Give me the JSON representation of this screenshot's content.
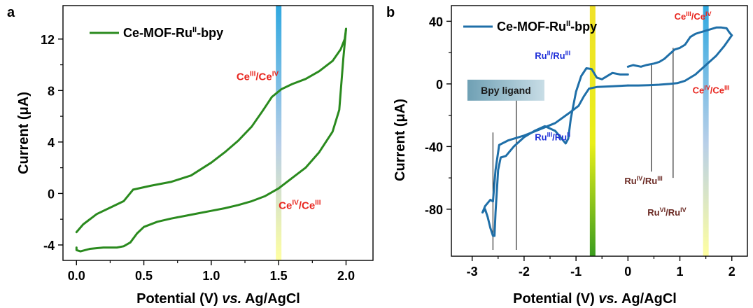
{
  "chart_data": [
    {
      "type": "line",
      "panel_label": "a",
      "legend": "Ce-MOF-Ru",
      "legend_sup": "II",
      "legend_tail": "-bpy",
      "legend_position": "top-left",
      "xlabel_pre": "Potential (V) ",
      "xlabel_ital": "vs.",
      "xlabel_post": " Ag/AgCl",
      "ylabel_pre": "Current (",
      "ylabel_mu": "μ",
      "ylabel_post": "A)",
      "xlim": [
        -0.1,
        2.2
      ],
      "ylim": [
        -5.2,
        14.6
      ],
      "xticks": [
        0.0,
        0.5,
        1.0,
        1.5,
        2.0
      ],
      "xtick_labels": [
        "0.0",
        "0.5",
        "1.0",
        "1.5",
        "2.0"
      ],
      "yticks": [
        -4,
        0,
        4,
        8,
        12
      ],
      "ytick_labels": [
        "-4",
        "0",
        "4",
        "8",
        "12"
      ],
      "color": "#2a8a1e",
      "series": [
        {
          "x": [
            0.0,
            0.05,
            0.15,
            0.25,
            0.35,
            0.42,
            0.55,
            0.7,
            0.85,
            1.0,
            1.1,
            1.2,
            1.3,
            1.38,
            1.45,
            1.52,
            1.6,
            1.7,
            1.8,
            1.9,
            1.96,
            1.99,
            2.0
          ],
          "y": [
            -3.0,
            -2.4,
            -1.6,
            -1.1,
            -0.6,
            0.3,
            0.6,
            0.9,
            1.4,
            2.4,
            3.2,
            4.1,
            5.2,
            6.4,
            7.5,
            8.1,
            8.5,
            8.9,
            9.5,
            10.3,
            11.2,
            12.0,
            12.8
          ]
        },
        {
          "x": [
            2.0,
            1.98,
            1.95,
            1.9,
            1.8,
            1.7,
            1.6,
            1.5,
            1.4,
            1.3,
            1.2,
            1.1,
            1.0,
            0.9,
            0.8,
            0.7,
            0.6,
            0.5,
            0.45,
            0.4,
            0.35,
            0.3,
            0.2,
            0.1,
            0.03,
            0.0,
            0.0
          ],
          "y": [
            12.8,
            10.5,
            6.5,
            4.8,
            3.2,
            2.0,
            1.2,
            0.4,
            -0.2,
            -0.6,
            -0.9,
            -1.15,
            -1.35,
            -1.55,
            -1.75,
            -1.95,
            -2.2,
            -2.6,
            -3.1,
            -3.8,
            -4.1,
            -4.2,
            -4.2,
            -4.3,
            -4.5,
            -4.4,
            -4.2
          ]
        }
      ],
      "annotations": [
        {
          "base": "Ce",
          "sup1": "III",
          "mid": "/Ce",
          "sup2": "IV",
          "x": 1.5,
          "y": 8.8,
          "color": "#e8261f"
        },
        {
          "base": "Ce",
          "sup1": "IV",
          "mid": "/Ce",
          "sup2": "III",
          "x": 1.5,
          "y": -1.2,
          "color": "#e8261f"
        }
      ],
      "band": {
        "x": 1.5,
        "colors": [
          "#2fa8e0",
          "#b8cfe8",
          "#ffffa0"
        ]
      }
    },
    {
      "type": "line",
      "panel_label": "b",
      "legend": "Ce-MOF-Ru",
      "legend_sup": "II",
      "legend_tail": "-bpy",
      "legend_position": "top-left",
      "xlabel_pre": "Potential (V) ",
      "xlabel_ital": "vs.",
      "xlabel_post": " Ag/AgCl",
      "ylabel_pre": "Current (",
      "ylabel_mu": "μ",
      "ylabel_post": "A)",
      "xlim": [
        -3.4,
        2.3
      ],
      "ylim": [
        -110,
        50
      ],
      "xticks": [
        -3,
        -2,
        -1,
        0,
        1,
        2
      ],
      "xtick_labels": [
        "-3",
        "-2",
        "-1",
        "0",
        "1",
        "2"
      ],
      "yticks": [
        -80,
        -40,
        0,
        40
      ],
      "ytick_labels": [
        "-80",
        "-40",
        "0",
        "40"
      ],
      "color": "#1f6fa8",
      "series": [
        {
          "x": [
            0.0,
            -0.3,
            -0.6,
            -0.75,
            -0.85,
            -0.95,
            -1.15,
            -1.4,
            -1.7,
            -2.0,
            -2.3,
            -2.48,
            -2.55,
            -2.6,
            -2.65,
            -2.75,
            -2.8
          ],
          "y": [
            -1.0,
            -1.5,
            -2.0,
            -3.0,
            -8.0,
            -14.0,
            -19.0,
            -25.0,
            -29.0,
            -33.0,
            -36.0,
            -39.0,
            -55.0,
            -75.0,
            -74.0,
            -78.0,
            -82.0
          ]
        },
        {
          "x": [
            -2.8,
            -2.75,
            -2.7,
            -2.65,
            -2.6,
            -2.57,
            -2.55,
            -2.5,
            -2.45,
            -2.35,
            -2.2,
            -2.0,
            -1.8,
            -1.6,
            -1.4,
            -1.2,
            -1.15,
            -1.1,
            -1.0,
            -0.9,
            -0.8,
            -0.7,
            -0.6,
            -0.5,
            -0.3,
            -0.15,
            0.0
          ],
          "y": [
            -82.0,
            -80.0,
            -85.0,
            -92.0,
            -97.0,
            -97.0,
            -82.0,
            -55.0,
            -47.0,
            -46.0,
            -40.0,
            -34.0,
            -30.0,
            -27.0,
            -30.0,
            -38.0,
            -35.0,
            -22.0,
            -5.0,
            5.0,
            10.0,
            9.5,
            4.0,
            3.0,
            7.0,
            6.0,
            6.0
          ]
        },
        {
          "x": [
            0.0,
            0.1,
            0.25,
            0.35,
            0.5,
            0.6,
            0.7,
            0.8,
            0.9,
            1.0,
            1.1,
            1.2,
            1.3,
            1.4,
            1.5,
            1.6,
            1.7,
            1.8,
            1.9,
            1.95,
            2.0
          ],
          "y": [
            11.0,
            12.0,
            11.0,
            12.0,
            13.0,
            14.0,
            16.0,
            19.0,
            22.0,
            23.0,
            25.0,
            30.0,
            32.0,
            33.0,
            34.0,
            35.0,
            36.0,
            36.0,
            35.5,
            33.0,
            31.0
          ]
        },
        {
          "x": [
            2.0,
            1.85,
            1.7,
            1.5,
            1.3,
            1.1,
            0.95,
            0.8,
            0.6,
            0.4,
            0.2,
            0.0
          ],
          "y": [
            31.0,
            24.0,
            18.0,
            12.0,
            6.0,
            2.0,
            0.5,
            0.0,
            -0.5,
            -0.8,
            -1.0,
            -1.0
          ]
        }
      ],
      "annotations": [
        {
          "base": "Ru",
          "sup1": "II",
          "mid": "/Ru",
          "sup2": "III",
          "x": -1.45,
          "y": 16.0,
          "color": "#1f2fd8"
        },
        {
          "base": "Ru",
          "sup1": "III",
          "mid": "/Ru",
          "sup2": "II",
          "x": -1.45,
          "y": -36.0,
          "color": "#1f2fd8"
        },
        {
          "base": "Ce",
          "sup1": "III",
          "mid": "/Ce",
          "sup2": "IV",
          "x": 1.25,
          "y": 41.0,
          "color": "#e8261f"
        },
        {
          "base": "Ce",
          "sup1": "IV",
          "mid": "/Ce",
          "sup2": "III",
          "x": 1.6,
          "y": -6.0,
          "color": "#e8261f"
        },
        {
          "base": "Ru",
          "sup1": "IV",
          "mid": "/Ru",
          "sup2": "III",
          "x": 0.3,
          "y": -64.0,
          "color": "#6b2a24"
        },
        {
          "base": "Ru",
          "sup1": "VI",
          "mid": "/Ru",
          "sup2": "IV",
          "x": 0.75,
          "y": -84.0,
          "color": "#6b2a24"
        }
      ],
      "leader_lines": [
        {
          "x": -2.6,
          "y1": -31.0,
          "y2": -106.0
        },
        {
          "x": -2.15,
          "y1": -1.0,
          "y2": -106.0
        },
        {
          "x": 0.45,
          "y1": 13.0,
          "y2": -56.0
        },
        {
          "x": 0.87,
          "y1": 23.0,
          "y2": -60.0
        }
      ],
      "label_box": {
        "text": "Bpy ligand",
        "x": -2.35,
        "y": -4.0
      },
      "band_left": {
        "x": -0.68,
        "colors": [
          "#f0e12a",
          "#e9ef1a",
          "#3a9d1e"
        ]
      },
      "band_right": {
        "x": 1.5,
        "colors": [
          "#2fa8e0",
          "#b8cfe8",
          "#ffffa0"
        ]
      }
    }
  ]
}
